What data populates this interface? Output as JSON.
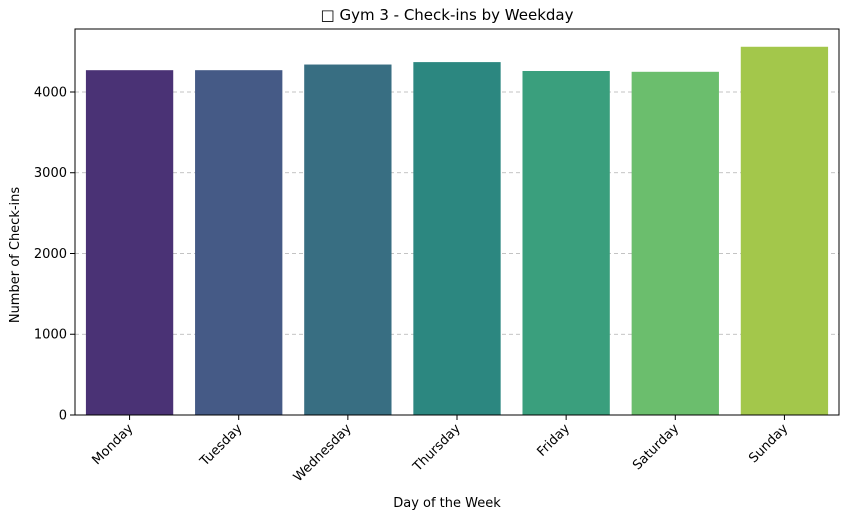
{
  "chart_data": {
    "type": "bar",
    "title": "□ Gym 3 - Check-ins by Weekday",
    "xlabel": "Day of the Week",
    "ylabel": "Number of Check-ins",
    "categories": [
      "Monday",
      "Tuesday",
      "Wednesday",
      "Thursday",
      "Friday",
      "Saturday",
      "Sunday"
    ],
    "values": [
      4270,
      4270,
      4340,
      4370,
      4260,
      4250,
      4560
    ],
    "colors": [
      "#4a3275",
      "#455a86",
      "#386e82",
      "#2c8780",
      "#3a9f7d",
      "#6bbe6d",
      "#a3c74b"
    ],
    "ylim": [
      0,
      4780
    ],
    "yticks": [
      0,
      1000,
      2000,
      3000,
      4000
    ],
    "grid": "y-dashed",
    "x_tick_rotation": 45
  }
}
